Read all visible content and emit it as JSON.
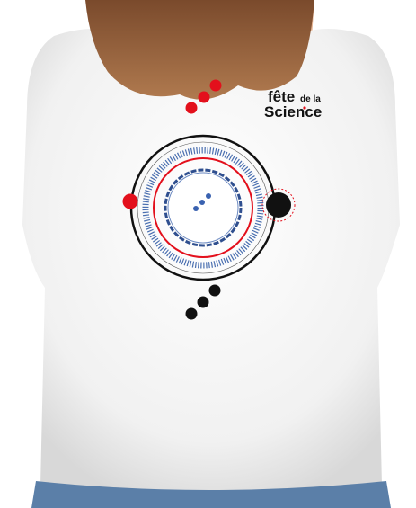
{
  "logo": {
    "line1": "fête",
    "line2": "de la",
    "line3": "Science"
  }
}
